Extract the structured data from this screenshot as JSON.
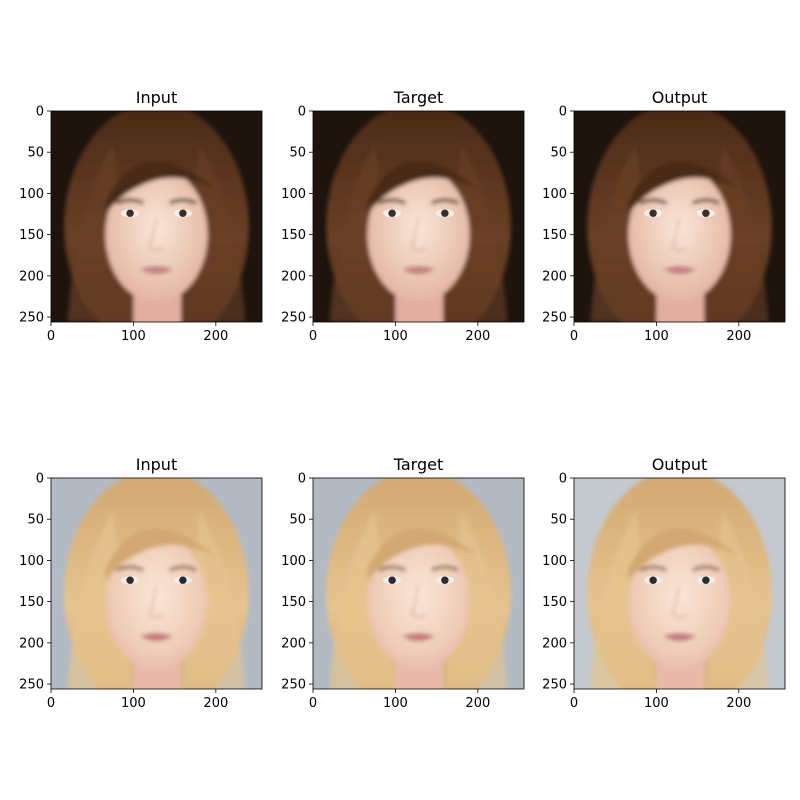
{
  "figure": {
    "axis": {
      "x_ticks": [
        0,
        100,
        200
      ],
      "y_ticks": [
        0,
        50,
        100,
        150,
        200,
        250
      ],
      "range": [
        0,
        256
      ]
    },
    "panels": [
      {
        "title": "Input",
        "image": "face-brunette-input"
      },
      {
        "title": "Target",
        "image": "face-brunette-target"
      },
      {
        "title": "Output",
        "image": "face-brunette-output"
      },
      {
        "title": "Input",
        "image": "face-blonde-input"
      },
      {
        "title": "Target",
        "image": "face-blonde-target"
      },
      {
        "title": "Output",
        "image": "face-blonde-output"
      }
    ],
    "palettes": {
      "brunette": {
        "bg": "#1e130d",
        "hair": "#4a2a17",
        "hair_light": "#6a4026",
        "skin": "#e8c2ae",
        "cheek": "#e3aea0",
        "lips": "#c47d80",
        "eye": "#3a2e2a",
        "brow": "#4a2d1e"
      },
      "blonde": {
        "bg": "#b3bac3",
        "hair": "#d2a772",
        "hair_light": "#e6c48f",
        "skin": "#efcdb7",
        "cheek": "#e9b9aa",
        "lips": "#c3787c",
        "eye": "#2a2a30",
        "brow": "#8a6648"
      }
    }
  }
}
